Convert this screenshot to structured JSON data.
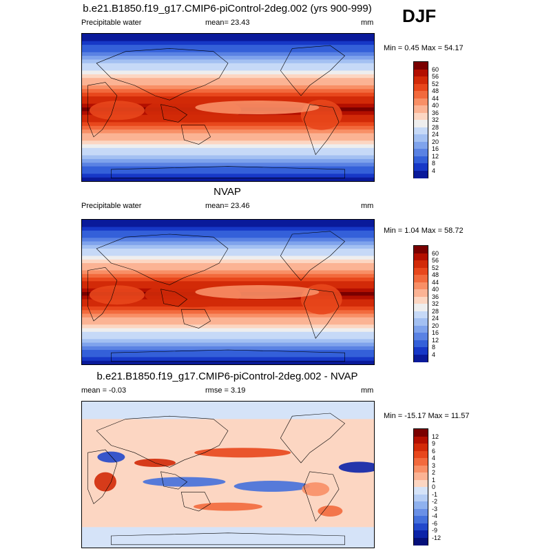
{
  "season": "DJF",
  "panels": [
    {
      "title": "b.e21.B1850.f19_g17.CMIP6-piControl-2deg.002 (yrs 900-999)",
      "left_label": "Precipitable water",
      "center_label": "mean=  23.43",
      "right_label": "mm",
      "minmax": "Min =  0.45 Max =  54.17",
      "kind": "field"
    },
    {
      "title": "NVAP",
      "left_label": "Precipitable water",
      "center_label": "mean=  23.46",
      "right_label": "mm",
      "minmax": "Min =  1.04 Max =  58.72",
      "kind": "field"
    },
    {
      "title": "b.e21.B1850.f19_g17.CMIP6-piControl-2deg.002 - NVAP",
      "left_label": "mean =  -0.03",
      "center_label": "rmse =   3.19",
      "right_label": "mm",
      "minmax": "Min = -15.17 Max =  11.57",
      "kind": "diff"
    }
  ],
  "colorbars": {
    "field": {
      "labels": [
        "60",
        "56",
        "52",
        "48",
        "44",
        "40",
        "36",
        "32",
        "28",
        "24",
        "20",
        "16",
        "12",
        "8",
        "4"
      ],
      "colors": [
        "#7a0000",
        "#b30f00",
        "#d22a08",
        "#e8471c",
        "#f26a3d",
        "#f88f66",
        "#fbb394",
        "#fcd6c2",
        "#eeeeee",
        "#c6d9f7",
        "#a3c0f2",
        "#7fa3ec",
        "#5a82e3",
        "#3460d9",
        "#1738c7",
        "#0a1a9a"
      ]
    },
    "diff": {
      "labels": [
        "12",
        "9",
        "6",
        "4",
        "3",
        "2",
        "1",
        "0",
        "-1",
        "-2",
        "-3",
        "-4",
        "-6",
        "-9",
        "-12"
      ],
      "colors": [
        "#7a0000",
        "#b30f00",
        "#d22a08",
        "#e8471c",
        "#f26a3d",
        "#f88f66",
        "#fbb394",
        "#fcd6c2",
        "#d5e3f8",
        "#b5cdf4",
        "#8fb1ee",
        "#6a90e6",
        "#4470dc",
        "#2248cb",
        "#0c24a8",
        "#05107a"
      ]
    }
  }
}
